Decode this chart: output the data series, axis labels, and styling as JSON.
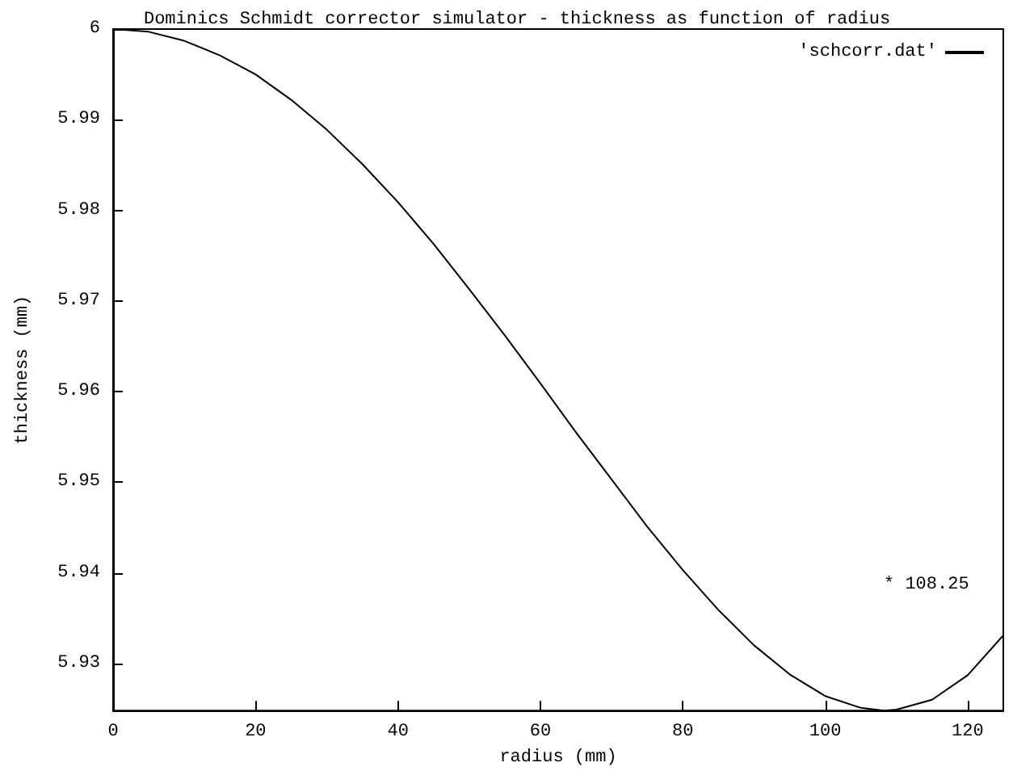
{
  "chart_data": {
    "type": "line",
    "title": "Dominics Schmidt corrector simulator - thickness as function of radius",
    "xlabel": "radius (mm)",
    "ylabel": "thickness (mm)",
    "series": [
      {
        "name": "'schcorr.dat'",
        "color": "#000000",
        "x": [
          0,
          5,
          10,
          15,
          20,
          25,
          30,
          35,
          40,
          45,
          50,
          55,
          60,
          65,
          70,
          75,
          80,
          85,
          90,
          95,
          100,
          105,
          108.25,
          110,
          115,
          120,
          125
        ],
        "values": [
          6,
          5.9997,
          5.9987,
          5.9971,
          5.995,
          5.9922,
          5.9889,
          5.9851,
          5.9809,
          5.9763,
          5.9713,
          5.9662,
          5.9609,
          5.9555,
          5.9503,
          5.9451,
          5.9403,
          5.9359,
          5.932,
          5.9288,
          5.9264,
          5.9251,
          5.9248,
          5.9249,
          5.926,
          5.9287,
          5.9331
        ]
      }
    ],
    "annotations": [
      "* 108.25"
    ],
    "xlim": [
      0,
      125
    ],
    "xticks": [
      0,
      20,
      40,
      60,
      80,
      100,
      120
    ],
    "ylim": [
      5.9248,
      6
    ],
    "yticks": [
      5.93,
      5.94,
      5.95,
      5.96,
      5.97,
      5.98,
      5.99,
      6
    ],
    "grid": false,
    "legend": "top right",
    "marker": "none",
    "line_style": "solid"
  }
}
